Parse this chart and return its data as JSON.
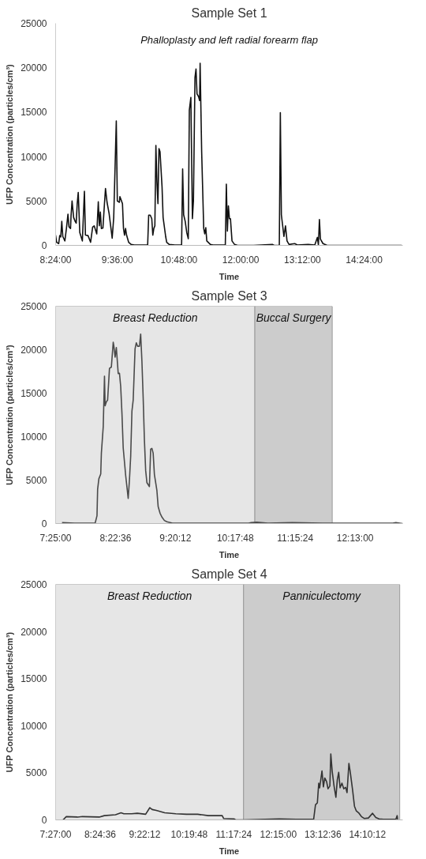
{
  "chart_data": [
    {
      "type": "line",
      "title": "Sample Set 1",
      "xlabel": "Time",
      "ylabel": "UFP Concentration (particles/cm³)",
      "annotations": [
        "Phalloplasty and left radial forearm flap"
      ],
      "xlim": [
        8.4,
        15.15
      ],
      "ylim": [
        0,
        25000
      ],
      "xticks": [
        {
          "value": 8.4,
          "label": "8:24:00"
        },
        {
          "value": 9.6,
          "label": "9:36:00"
        },
        {
          "value": 10.8,
          "label": "10:48:00"
        },
        {
          "value": 12.0,
          "label": "12:00:00"
        },
        {
          "value": 13.2,
          "label": "13:12:00"
        },
        {
          "value": 14.4,
          "label": "14:24:00"
        }
      ],
      "yticks": [
        0,
        5000,
        10000,
        15000,
        20000,
        25000
      ],
      "grid": false,
      "series": [
        {
          "color": "#111111",
          "x": [
            8.4,
            8.42,
            8.46,
            8.48,
            8.5,
            8.52,
            8.54,
            8.58,
            8.61,
            8.64,
            8.66,
            8.69,
            8.7,
            8.72,
            8.75,
            8.78,
            8.8,
            8.82,
            8.84,
            8.87,
            8.92,
            8.96,
            8.98,
            9.03,
            9.08,
            9.12,
            9.15,
            9.2,
            9.23,
            9.25,
            9.27,
            9.29,
            9.32,
            9.35,
            9.37,
            9.4,
            9.44,
            9.48,
            9.5,
            9.53,
            9.58,
            9.6,
            9.64,
            9.65,
            9.7,
            9.72,
            9.74,
            9.76,
            9.78,
            9.82,
            9.87,
            9.93,
            10.19,
            10.21,
            10.24,
            10.27,
            10.29,
            10.31,
            10.33,
            10.35,
            10.37,
            10.39,
            10.41,
            10.43,
            10.47,
            10.49,
            10.54,
            10.56,
            10.61,
            10.72,
            10.85,
            10.87,
            10.89,
            10.92,
            10.95,
            10.98,
            11.0,
            11.03,
            11.06,
            11.08,
            11.11,
            11.13,
            11.15,
            11.18,
            11.2,
            11.21,
            11.24,
            11.28,
            11.3,
            11.32,
            11.34,
            11.41,
            11.46,
            11.7,
            11.72,
            11.74,
            11.76,
            11.78,
            11.8,
            11.83,
            11.88,
            11.94,
            12.25,
            12.62,
            12.65,
            12.75,
            12.77,
            12.79,
            12.84,
            12.87,
            12.9,
            12.94,
            13.05,
            13.1,
            13.31,
            13.44,
            13.49,
            13.51,
            13.53,
            13.55,
            13.6,
            13.68,
            15.13
          ],
          "values": [
            1150,
            350,
            200,
            1100,
            950,
            2700,
            1000,
            500,
            1900,
            3500,
            2100,
            1900,
            3300,
            5000,
            3150,
            2700,
            2500,
            4700,
            5950,
            1450,
            500,
            6100,
            1150,
            1100,
            350,
            2050,
            2200,
            1300,
            4900,
            2200,
            3750,
            1900,
            1950,
            4700,
            6400,
            4850,
            3600,
            1750,
            800,
            3150,
            14000,
            5000,
            4850,
            5500,
            4700,
            1900,
            1150,
            1900,
            1150,
            350,
            100,
            50,
            50,
            3400,
            3400,
            3000,
            1150,
            1900,
            2200,
            11250,
            7150,
            4700,
            10900,
            10550,
            6550,
            3150,
            1000,
            350,
            100,
            50,
            50,
            8600,
            3450,
            2700,
            1450,
            750,
            15200,
            16650,
            3000,
            5000,
            18900,
            19850,
            17050,
            16750,
            16300,
            20500,
            10550,
            1900,
            1300,
            2000,
            500,
            100,
            50,
            50,
            6900,
            1600,
            4450,
            3000,
            3000,
            500,
            100,
            0,
            0,
            100,
            0,
            0,
            14950,
            3450,
            1000,
            2200,
            500,
            100,
            200,
            50,
            100,
            50,
            900,
            50,
            2900,
            700,
            200,
            0,
            0
          ]
        }
      ]
    },
    {
      "type": "line",
      "title": "Sample Set 3",
      "xlabel": "Time",
      "ylabel": "UFP Concentration (particles/cm³)",
      "xlim": [
        7.4167,
        12.98
      ],
      "ylim": [
        0,
        25000
      ],
      "xticks": [
        {
          "value": 7.4167,
          "label": "7:25:00"
        },
        {
          "value": 8.3767,
          "label": "8:22:36"
        },
        {
          "value": 9.3367,
          "label": "9:20:12"
        },
        {
          "value": 10.2967,
          "label": "10:17:48"
        },
        {
          "value": 11.2567,
          "label": "11:15:24"
        },
        {
          "value": 12.2167,
          "label": "12:13:00"
        }
      ],
      "yticks": [
        0,
        5000,
        10000,
        15000,
        20000,
        25000
      ],
      "grid": false,
      "bands": [
        {
          "axis": "x",
          "from": 7.4167,
          "to": 10.61,
          "label": "Breast Reduction",
          "color": "#e6e6e6"
        },
        {
          "axis": "x",
          "from": 10.61,
          "to": 11.85,
          "label": "Buccal Surgery",
          "color": "#cccccc"
        }
      ],
      "series": [
        {
          "color": "#4a4a4a",
          "x": [
            7.52,
            7.72,
            7.91,
            8.05,
            8.08,
            8.09,
            8.11,
            8.14,
            8.15,
            8.18,
            8.2,
            8.21,
            8.23,
            8.25,
            8.28,
            8.31,
            8.34,
            8.35,
            8.37,
            8.39,
            8.42,
            8.44,
            8.46,
            8.48,
            8.5,
            8.54,
            8.58,
            8.6,
            8.62,
            8.64,
            8.66,
            8.69,
            8.71,
            8.73,
            8.76,
            8.78,
            8.8,
            8.82,
            8.84,
            8.86,
            8.88,
            8.92,
            8.94,
            8.96,
            8.98,
            9.0,
            9.04,
            9.06,
            9.09,
            9.12,
            9.16,
            9.2,
            9.29,
            9.51,
            9.94,
            10.51,
            10.55,
            10.64,
            10.82,
            11.21,
            11.69,
            12.12,
            12.56,
            12.82,
            12.87,
            12.98
          ],
          "values": [
            100,
            50,
            50,
            50,
            900,
            3950,
            5150,
            5700,
            8100,
            11150,
            16950,
            13550,
            14000,
            14200,
            17850,
            18000,
            20850,
            20450,
            19150,
            20250,
            17250,
            17300,
            15750,
            12650,
            8700,
            5500,
            2900,
            5000,
            7750,
            12950,
            14200,
            20100,
            20800,
            20400,
            20400,
            21800,
            18650,
            14450,
            9600,
            6100,
            4700,
            4250,
            8550,
            8650,
            8100,
            5650,
            3800,
            1950,
            1200,
            750,
            350,
            200,
            50,
            50,
            50,
            50,
            100,
            150,
            50,
            100,
            50,
            50,
            50,
            50,
            100,
            0
          ]
        }
      ]
    },
    {
      "type": "line",
      "title": "Sample Set 4",
      "xlabel": "Time",
      "ylabel": "UFP Concentration (particles/cm³)",
      "xlim": [
        7.45,
        14.93
      ],
      "ylim": [
        0,
        25000
      ],
      "xticks": [
        {
          "value": 7.45,
          "label": "7:27:00"
        },
        {
          "value": 8.41,
          "label": "8:24:36"
        },
        {
          "value": 9.37,
          "label": "9:22:12"
        },
        {
          "value": 10.33,
          "label": "10:19:48"
        },
        {
          "value": 11.29,
          "label": "11:17:24"
        },
        {
          "value": 12.25,
          "label": "12:15:00"
        },
        {
          "value": 13.21,
          "label": "13:12:36"
        },
        {
          "value": 14.17,
          "label": "14:10:12"
        }
      ],
      "yticks": [
        0,
        5000,
        10000,
        15000,
        20000,
        25000
      ],
      "grid": false,
      "bands": [
        {
          "axis": "x",
          "from": 7.45,
          "to": 11.5,
          "label": "Breast Reduction",
          "color": "#e6e6e6"
        },
        {
          "axis": "x",
          "from": 11.5,
          "to": 14.865,
          "label": "Panniculectomy",
          "color": "#cccccc"
        }
      ],
      "series": [
        {
          "color": "#333333",
          "x": [
            7.61,
            7.68,
            7.92,
            8.03,
            8.39,
            8.5,
            8.74,
            8.86,
            8.92,
            9.09,
            9.21,
            9.39,
            9.48,
            9.53,
            9.62,
            9.8,
            10.04,
            10.27,
            10.51,
            10.74,
            11.04,
            11.07,
            11.3,
            11.33,
            11.5,
            12.27,
            12.63,
            13.01,
            13.05,
            13.09,
            13.12,
            13.14,
            13.19,
            13.22,
            13.25,
            13.29,
            13.32,
            13.36,
            13.38,
            13.41,
            13.45,
            13.49,
            13.52,
            13.55,
            13.58,
            13.62,
            13.66,
            13.7,
            13.73,
            13.77,
            13.8,
            13.85,
            13.89,
            13.93,
            13.98,
            14.04,
            14.1,
            14.19,
            14.28,
            14.35,
            14.42,
            14.51,
            14.78,
            14.81,
            14.82
          ],
          "values": [
            0,
            350,
            300,
            350,
            300,
            450,
            550,
            750,
            650,
            650,
            700,
            600,
            1300,
            1100,
            1000,
            750,
            650,
            600,
            600,
            450,
            450,
            150,
            100,
            0,
            0,
            100,
            50,
            50,
            1600,
            1800,
            3900,
            3400,
            5200,
            3500,
            4450,
            4050,
            3300,
            3600,
            7000,
            5150,
            3600,
            2400,
            4250,
            5050,
            3400,
            3900,
            3300,
            3450,
            2900,
            6000,
            5050,
            3150,
            1450,
            950,
            750,
            350,
            150,
            200,
            700,
            250,
            100,
            50,
            50,
            450,
            50
          ]
        }
      ]
    }
  ]
}
